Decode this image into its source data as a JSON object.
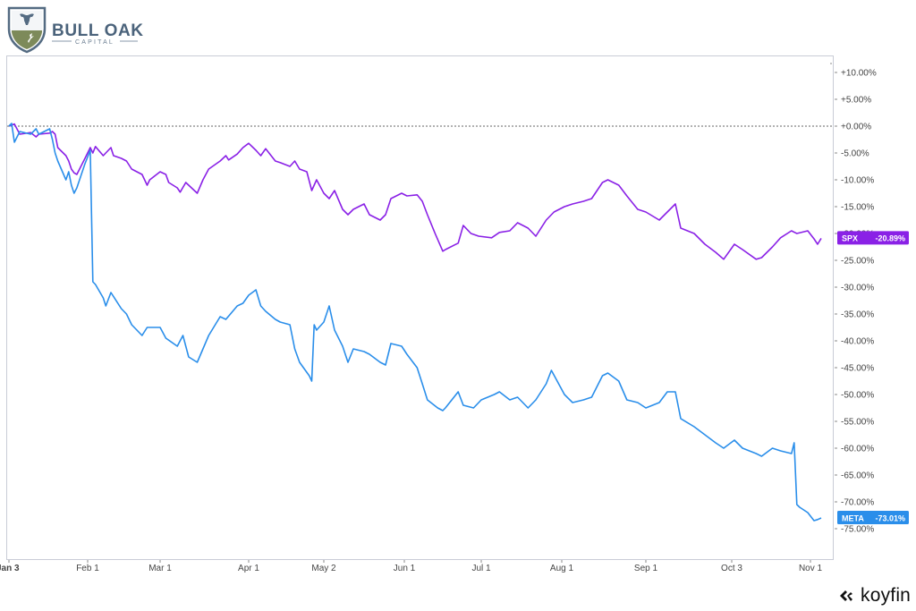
{
  "brand": {
    "name": "BULL OAK",
    "tagline": "CAPITAL"
  },
  "footer": {
    "provider": "koyfin"
  },
  "colors": {
    "spx": "#8a21e6",
    "meta": "#2a8eea",
    "zero_line": "#666666",
    "axis_text": "#444444"
  },
  "chart_data": {
    "type": "line",
    "title": "",
    "xlabel": "",
    "ylabel": "",
    "ylim": [
      -77.5,
      12.5
    ],
    "y_unit": "%",
    "yticks": [
      10,
      5,
      0,
      -5,
      -10,
      -15,
      -20,
      -25,
      -30,
      -35,
      -40,
      -45,
      -50,
      -55,
      -60,
      -65,
      -70,
      -75
    ],
    "ytick_labels": [
      "+10.00%",
      "+5.00%",
      "+0.00%",
      "-5.00%",
      "-10.00%",
      "-15.00%",
      "-20.00%",
      "-25.00%",
      "-30.00%",
      "-35.00%",
      "-40.00%",
      "-45.00%",
      "-50.00%",
      "-55.00%",
      "-60.00%",
      "-65.00%",
      "-70.00%",
      "-75.00%"
    ],
    "xtick_labels": [
      "Jan 3",
      "Feb 1",
      "Mar 1",
      "Apr 1",
      "May 2",
      "Jun 1",
      "Jul 1",
      "Aug 1",
      "Sep 1",
      "Oct 3",
      "Nov 1"
    ],
    "xtick_dates": [
      "2022-01-03",
      "2022-02-01",
      "2022-03-01",
      "2022-04-01",
      "2022-05-02",
      "2022-06-01",
      "2022-07-01",
      "2022-08-01",
      "2022-09-01",
      "2022-10-03",
      "2022-11-01"
    ],
    "zero_line": true,
    "grid": false,
    "series": [
      {
        "name": "SPX",
        "last_value_label": "-20.89%",
        "points": [
          [
            "2022-01-03",
            0.0
          ],
          [
            "2022-01-05",
            0.4
          ],
          [
            "2022-01-07",
            -1.5
          ],
          [
            "2022-01-11",
            -1.2
          ],
          [
            "2022-01-13",
            -2.0
          ],
          [
            "2022-01-14",
            -1.5
          ],
          [
            "2022-01-18",
            -1.3
          ],
          [
            "2022-01-19",
            -1.0
          ],
          [
            "2022-01-20",
            -1.5
          ],
          [
            "2022-01-21",
            -4.0
          ],
          [
            "2022-01-24",
            -5.5
          ],
          [
            "2022-01-25",
            -6.5
          ],
          [
            "2022-01-26",
            -8.0
          ],
          [
            "2022-01-27",
            -8.7
          ],
          [
            "2022-01-28",
            -9.0
          ],
          [
            "2022-01-31",
            -6.0
          ],
          [
            "2022-02-02",
            -4.0
          ],
          [
            "2022-02-03",
            -5.0
          ],
          [
            "2022-02-04",
            -3.8
          ],
          [
            "2022-02-07",
            -5.5
          ],
          [
            "2022-02-09",
            -4.5
          ],
          [
            "2022-02-10",
            -4.0
          ],
          [
            "2022-02-11",
            -5.5
          ],
          [
            "2022-02-14",
            -6.0
          ],
          [
            "2022-02-16",
            -6.5
          ],
          [
            "2022-02-18",
            -8.0
          ],
          [
            "2022-02-22",
            -9.0
          ],
          [
            "2022-02-24",
            -11.0
          ],
          [
            "2022-02-25",
            -10.0
          ],
          [
            "2022-03-01",
            -8.5
          ],
          [
            "2022-03-03",
            -9.0
          ],
          [
            "2022-03-04",
            -10.5
          ],
          [
            "2022-03-07",
            -11.5
          ],
          [
            "2022-03-08",
            -12.3
          ],
          [
            "2022-03-10",
            -10.5
          ],
          [
            "2022-03-11",
            -11.0
          ],
          [
            "2022-03-14",
            -12.5
          ],
          [
            "2022-03-16",
            -10.0
          ],
          [
            "2022-03-18",
            -8.0
          ],
          [
            "2022-03-22",
            -6.5
          ],
          [
            "2022-03-24",
            -5.5
          ],
          [
            "2022-03-25",
            -6.3
          ],
          [
            "2022-03-28",
            -5.2
          ],
          [
            "2022-03-30",
            -4.0
          ],
          [
            "2022-04-01",
            -3.2
          ],
          [
            "2022-04-04",
            -4.5
          ],
          [
            "2022-04-06",
            -5.5
          ],
          [
            "2022-04-08",
            -4.2
          ],
          [
            "2022-04-12",
            -6.5
          ],
          [
            "2022-04-14",
            -6.8
          ],
          [
            "2022-04-18",
            -7.5
          ],
          [
            "2022-04-20",
            -6.5
          ],
          [
            "2022-04-22",
            -8.0
          ],
          [
            "2022-04-25",
            -8.5
          ],
          [
            "2022-04-27",
            -12.0
          ],
          [
            "2022-04-29",
            -10.0
          ],
          [
            "2022-05-02",
            -12.5
          ],
          [
            "2022-05-04",
            -13.5
          ],
          [
            "2022-05-06",
            -12.0
          ],
          [
            "2022-05-09",
            -15.5
          ],
          [
            "2022-05-11",
            -16.5
          ],
          [
            "2022-05-13",
            -15.5
          ],
          [
            "2022-05-17",
            -14.5
          ],
          [
            "2022-05-19",
            -16.5
          ],
          [
            "2022-05-23",
            -17.5
          ],
          [
            "2022-05-25",
            -16.5
          ],
          [
            "2022-05-27",
            -13.5
          ],
          [
            "2022-05-31",
            -12.5
          ],
          [
            "2022-06-02",
            -13.0
          ],
          [
            "2022-06-06",
            -12.8
          ],
          [
            "2022-06-08",
            -14.0
          ],
          [
            "2022-06-10",
            -16.5
          ],
          [
            "2022-06-13",
            -20.0
          ],
          [
            "2022-06-16",
            -23.3
          ],
          [
            "2022-06-17",
            -23.0
          ],
          [
            "2022-06-22",
            -21.8
          ],
          [
            "2022-06-24",
            -18.5
          ],
          [
            "2022-06-27",
            -20.0
          ],
          [
            "2022-06-30",
            -20.5
          ],
          [
            "2022-07-05",
            -20.8
          ],
          [
            "2022-07-08",
            -19.8
          ],
          [
            "2022-07-12",
            -19.5
          ],
          [
            "2022-07-15",
            -18.0
          ],
          [
            "2022-07-19",
            -19.0
          ],
          [
            "2022-07-22",
            -20.5
          ],
          [
            "2022-07-26",
            -17.5
          ],
          [
            "2022-07-29",
            -16.0
          ],
          [
            "2022-08-02",
            -15.0
          ],
          [
            "2022-08-05",
            -14.5
          ],
          [
            "2022-08-09",
            -14.0
          ],
          [
            "2022-08-12",
            -13.5
          ],
          [
            "2022-08-16",
            -10.5
          ],
          [
            "2022-08-18",
            -10.0
          ],
          [
            "2022-08-22",
            -11.0
          ],
          [
            "2022-08-25",
            -13.0
          ],
          [
            "2022-08-29",
            -15.5
          ],
          [
            "2022-09-01",
            -16.0
          ],
          [
            "2022-09-06",
            -17.5
          ],
          [
            "2022-09-09",
            -16.0
          ],
          [
            "2022-09-12",
            -14.5
          ],
          [
            "2022-09-14",
            -19.0
          ],
          [
            "2022-09-19",
            -20.0
          ],
          [
            "2022-09-23",
            -22.0
          ],
          [
            "2022-09-27",
            -23.5
          ],
          [
            "2022-09-30",
            -24.8
          ],
          [
            "2022-10-04",
            -22.0
          ],
          [
            "2022-10-07",
            -23.0
          ],
          [
            "2022-10-12",
            -24.8
          ],
          [
            "2022-10-14",
            -24.5
          ],
          [
            "2022-10-18",
            -22.5
          ],
          [
            "2022-10-21",
            -20.8
          ],
          [
            "2022-10-25",
            -19.5
          ],
          [
            "2022-10-27",
            -20.0
          ],
          [
            "2022-10-31",
            -19.5
          ],
          [
            "2022-11-02",
            -21.0
          ],
          [
            "2022-11-03",
            -22.0
          ],
          [
            "2022-11-04",
            -20.9
          ]
        ]
      },
      {
        "name": "META",
        "last_value_label": "-73.01%",
        "points": [
          [
            "2022-01-03",
            0.0
          ],
          [
            "2022-01-04",
            0.5
          ],
          [
            "2022-01-05",
            -3.0
          ],
          [
            "2022-01-07",
            -1.0
          ],
          [
            "2022-01-11",
            -1.5
          ],
          [
            "2022-01-13",
            -0.5
          ],
          [
            "2022-01-14",
            -1.5
          ],
          [
            "2022-01-18",
            -0.5
          ],
          [
            "2022-01-19",
            -2.5
          ],
          [
            "2022-01-20",
            -5.0
          ],
          [
            "2022-01-21",
            -6.5
          ],
          [
            "2022-01-24",
            -10.0
          ],
          [
            "2022-01-25",
            -8.5
          ],
          [
            "2022-01-26",
            -11.0
          ],
          [
            "2022-01-27",
            -12.5
          ],
          [
            "2022-01-28",
            -11.5
          ],
          [
            "2022-01-31",
            -7.0
          ],
          [
            "2022-02-02",
            -4.5
          ],
          [
            "2022-02-03",
            -29.0
          ],
          [
            "2022-02-04",
            -29.5
          ],
          [
            "2022-02-07",
            -32.0
          ],
          [
            "2022-02-08",
            -33.5
          ],
          [
            "2022-02-10",
            -31.0
          ],
          [
            "2022-02-14",
            -34.0
          ],
          [
            "2022-02-16",
            -35.0
          ],
          [
            "2022-02-18",
            -37.0
          ],
          [
            "2022-02-22",
            -39.0
          ],
          [
            "2022-02-24",
            -37.5
          ],
          [
            "2022-03-01",
            -37.5
          ],
          [
            "2022-03-03",
            -39.5
          ],
          [
            "2022-03-07",
            -41.0
          ],
          [
            "2022-03-09",
            -39.0
          ],
          [
            "2022-03-11",
            -43.0
          ],
          [
            "2022-03-14",
            -44.0
          ],
          [
            "2022-03-16",
            -41.5
          ],
          [
            "2022-03-18",
            -39.0
          ],
          [
            "2022-03-22",
            -35.5
          ],
          [
            "2022-03-24",
            -36.0
          ],
          [
            "2022-03-28",
            -33.5
          ],
          [
            "2022-03-30",
            -33.0
          ],
          [
            "2022-04-01",
            -31.5
          ],
          [
            "2022-04-04",
            -30.5
          ],
          [
            "2022-04-06",
            -33.5
          ],
          [
            "2022-04-08",
            -34.5
          ],
          [
            "2022-04-12",
            -36.0
          ],
          [
            "2022-04-14",
            -36.5
          ],
          [
            "2022-04-18",
            -37.0
          ],
          [
            "2022-04-20",
            -41.5
          ],
          [
            "2022-04-22",
            -44.0
          ],
          [
            "2022-04-26",
            -46.5
          ],
          [
            "2022-04-27",
            -47.5
          ],
          [
            "2022-04-28",
            -37.0
          ],
          [
            "2022-04-29",
            -38.0
          ],
          [
            "2022-05-02",
            -36.5
          ],
          [
            "2022-05-04",
            -33.5
          ],
          [
            "2022-05-06",
            -38.0
          ],
          [
            "2022-05-09",
            -41.0
          ],
          [
            "2022-05-11",
            -44.0
          ],
          [
            "2022-05-13",
            -41.5
          ],
          [
            "2022-05-17",
            -42.0
          ],
          [
            "2022-05-19",
            -42.5
          ],
          [
            "2022-05-23",
            -44.0
          ],
          [
            "2022-05-25",
            -44.5
          ],
          [
            "2022-05-27",
            -40.5
          ],
          [
            "2022-05-31",
            -41.0
          ],
          [
            "2022-06-02",
            -42.5
          ],
          [
            "2022-06-06",
            -45.0
          ],
          [
            "2022-06-08",
            -48.0
          ],
          [
            "2022-06-10",
            -51.0
          ],
          [
            "2022-06-14",
            -52.5
          ],
          [
            "2022-06-16",
            -53.0
          ],
          [
            "2022-06-17",
            -52.5
          ],
          [
            "2022-06-22",
            -49.5
          ],
          [
            "2022-06-24",
            -52.0
          ],
          [
            "2022-06-28",
            -52.5
          ],
          [
            "2022-07-01",
            -51.0
          ],
          [
            "2022-07-06",
            -50.0
          ],
          [
            "2022-07-08",
            -49.5
          ],
          [
            "2022-07-12",
            -51.0
          ],
          [
            "2022-07-15",
            -50.5
          ],
          [
            "2022-07-19",
            -52.5
          ],
          [
            "2022-07-22",
            -51.0
          ],
          [
            "2022-07-26",
            -48.0
          ],
          [
            "2022-07-28",
            -45.5
          ],
          [
            "2022-08-02",
            -50.0
          ],
          [
            "2022-08-05",
            -51.5
          ],
          [
            "2022-08-09",
            -51.0
          ],
          [
            "2022-08-12",
            -50.5
          ],
          [
            "2022-08-16",
            -46.5
          ],
          [
            "2022-08-18",
            -46.0
          ],
          [
            "2022-08-22",
            -47.5
          ],
          [
            "2022-08-25",
            -51.0
          ],
          [
            "2022-08-29",
            -51.5
          ],
          [
            "2022-09-01",
            -52.5
          ],
          [
            "2022-09-06",
            -51.5
          ],
          [
            "2022-09-09",
            -49.5
          ],
          [
            "2022-09-12",
            -49.5
          ],
          [
            "2022-09-14",
            -54.5
          ],
          [
            "2022-09-19",
            -56.0
          ],
          [
            "2022-09-23",
            -57.5
          ],
          [
            "2022-09-27",
            -59.0
          ],
          [
            "2022-09-30",
            -60.0
          ],
          [
            "2022-10-04",
            -58.5
          ],
          [
            "2022-10-07",
            -60.0
          ],
          [
            "2022-10-12",
            -61.0
          ],
          [
            "2022-10-14",
            -61.5
          ],
          [
            "2022-10-18",
            -60.0
          ],
          [
            "2022-10-21",
            -60.5
          ],
          [
            "2022-10-25",
            -61.0
          ],
          [
            "2022-10-26",
            -59.0
          ],
          [
            "2022-10-27",
            -70.5
          ],
          [
            "2022-10-28",
            -71.0
          ],
          [
            "2022-10-31",
            -72.0
          ],
          [
            "2022-11-02",
            -73.5
          ],
          [
            "2022-11-03",
            -73.3
          ],
          [
            "2022-11-04",
            -73.0
          ]
        ]
      }
    ]
  }
}
